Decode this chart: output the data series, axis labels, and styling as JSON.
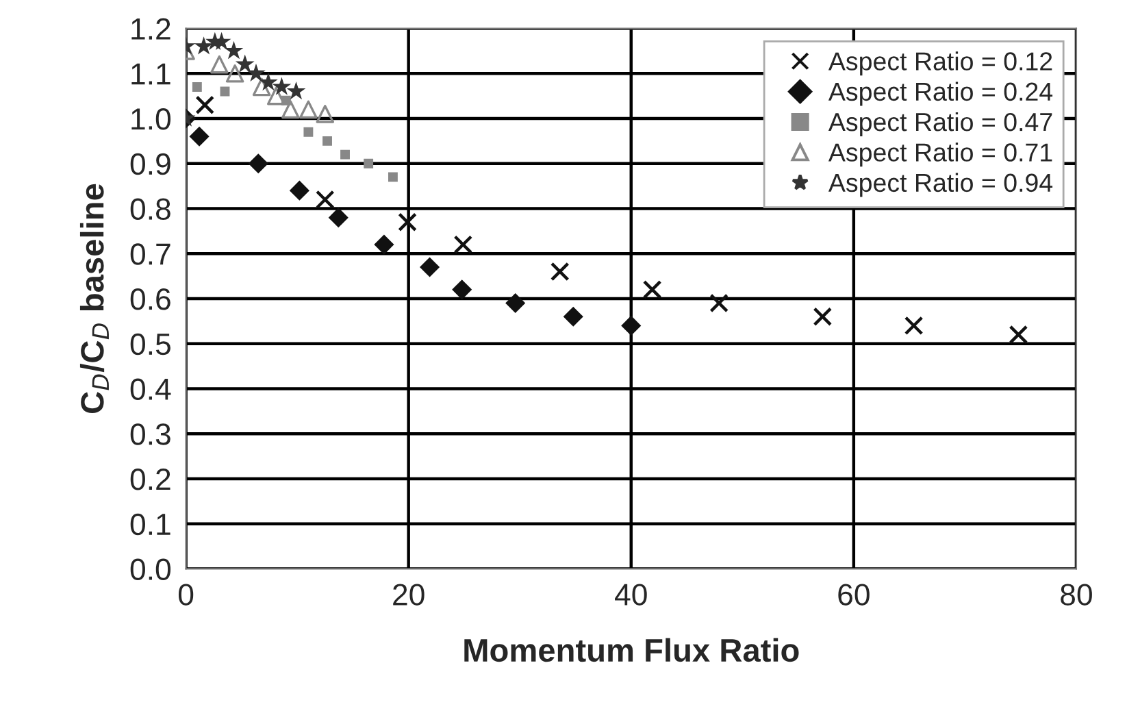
{
  "chart_data": {
    "type": "scatter",
    "xlabel": "Momentum Flux Ratio",
    "ylabel": "C$_{D}$/C$_{D}$ baseline",
    "xlim": [
      0,
      80
    ],
    "xticks": [
      0,
      20,
      40,
      60,
      80
    ],
    "ylim": [
      0,
      1.2
    ],
    "yticks": [
      {
        "value": 0,
        "label": "0.0"
      },
      {
        "value": 0.1,
        "label": "0.1"
      },
      {
        "value": 0.2,
        "label": "0.2"
      },
      {
        "value": 0.3,
        "label": "0.3"
      },
      {
        "value": 0.4,
        "label": "0.4"
      },
      {
        "value": 0.5,
        "label": "0.5"
      },
      {
        "value": 0.6,
        "label": "0.6"
      },
      {
        "value": 0.7,
        "label": "0.7"
      },
      {
        "value": 0.8,
        "label": "0.8"
      },
      {
        "value": 0.9,
        "label": "0.9"
      },
      {
        "value": 1.0,
        "label": "1.0"
      },
      {
        "value": 1.1,
        "label": "1.1"
      },
      {
        "value": 1.2,
        "label": "1.2"
      }
    ],
    "grid": true,
    "legend": "top right",
    "series": [
      {
        "name": "Aspect Ratio = 0.12",
        "color": "#111111",
        "marker": "cross",
        "x": [
          1.7,
          12.5,
          19.9,
          24.9,
          33.6,
          41.9,
          47.9,
          57.2,
          65.4,
          74.8
        ],
        "values": [
          1.03,
          0.82,
          0.77,
          0.72,
          0.66,
          0.62,
          0.59,
          0.56,
          0.54,
          0.52
        ]
      },
      {
        "name": "Aspect Ratio = 0.24",
        "color": "#111111",
        "marker": "diamond",
        "x": [
          0,
          1.2,
          6.5,
          10.2,
          13.7,
          17.8,
          21.9,
          24.8,
          29.6,
          34.8,
          40.0
        ],
        "values": [
          1.0,
          0.96,
          0.9,
          0.84,
          0.78,
          0.72,
          0.67,
          0.62,
          0.59,
          0.56,
          0.54
        ]
      },
      {
        "name": "Aspect Ratio = 0.47",
        "color": "#888888",
        "marker": "square",
        "x": [
          1.0,
          3.5,
          9.0,
          11.0,
          12.7,
          14.3,
          16.4,
          18.6
        ],
        "values": [
          1.07,
          1.06,
          1.04,
          0.97,
          0.95,
          0.92,
          0.9,
          0.87
        ]
      },
      {
        "name": "Aspect Ratio = 0.71",
        "color": "#888888",
        "marker": "triangle",
        "x": [
          0,
          3.0,
          4.4,
          6.8,
          8.1,
          9.4,
          11.0,
          12.5
        ],
        "values": [
          1.15,
          1.12,
          1.1,
          1.07,
          1.05,
          1.02,
          1.02,
          1.01
        ]
      },
      {
        "name": "Aspect Ratio = 0.94",
        "color": "#333333",
        "marker": "star",
        "x": [
          0,
          0,
          1.6,
          2.6,
          3.2,
          4.3,
          5.3,
          6.3,
          7.4,
          8.6,
          9.9
        ],
        "values": [
          1.0,
          1.16,
          1.16,
          1.17,
          1.17,
          1.15,
          1.12,
          1.1,
          1.08,
          1.07,
          1.06
        ]
      }
    ]
  }
}
